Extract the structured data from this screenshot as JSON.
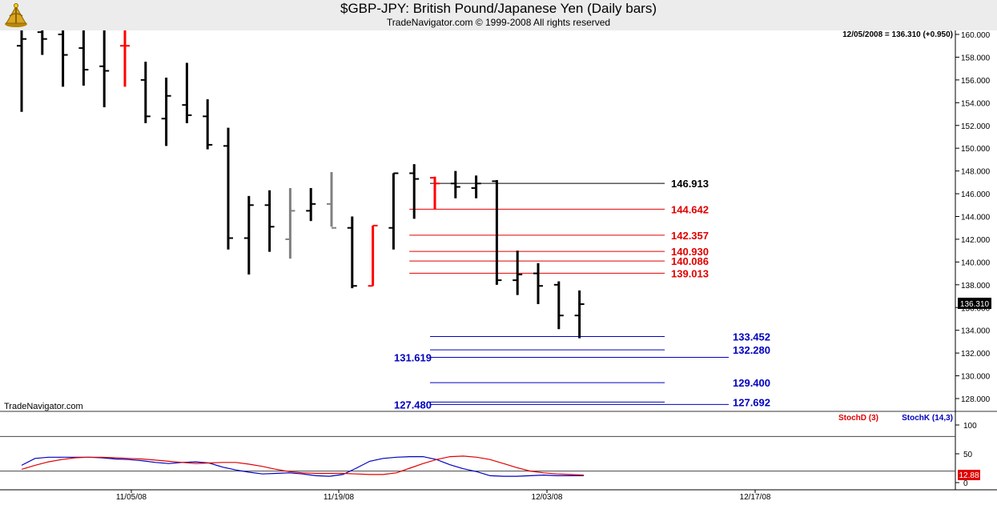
{
  "header": {
    "title": "$GBP-JPY:  British Pound/Japanese Yen  (Daily bars)",
    "copyright": "TradeNavigator.com © 1999-2008 All rights reserved"
  },
  "watermark": "TradeNavigator.com",
  "quote": "12/05/2008 = 136.310 (+0.950)",
  "last_price_tag": "136.310",
  "stoch_tag": "12.88",
  "legend": {
    "stochD": "StochD (3)",
    "stochK": "StochK (14,3)"
  },
  "colors": {
    "up": "#000000",
    "down": "#ff0000",
    "neutral": "#808080",
    "blue": "#0000c0",
    "red": "#e00000"
  },
  "chart_data": {
    "type": "ohlc",
    "y_range": [
      126,
      160.5
    ],
    "y_ticks": [
      "128.000",
      "130.000",
      "132.000",
      "134.000",
      "136.000",
      "138.000",
      "140.000",
      "142.000",
      "144.000",
      "146.000",
      "148.000",
      "150.000",
      "152.000",
      "154.000",
      "156.000",
      "158.000",
      "160.000"
    ],
    "x_labels": [
      "11/05/08",
      "11/19/08",
      "12/03/08",
      "12/17/08"
    ],
    "bars": [
      {
        "o": 159.0,
        "h": 160.5,
        "l": 153.2,
        "c": 159.6,
        "color": "up"
      },
      {
        "o": 160.2,
        "h": 160.5,
        "l": 158.2,
        "c": 159.6,
        "color": "up"
      },
      {
        "o": 160.0,
        "h": 160.5,
        "l": 155.4,
        "c": 158.2,
        "color": "up"
      },
      {
        "o": 158.8,
        "h": 160.5,
        "l": 155.5,
        "c": 156.9,
        "color": "up"
      },
      {
        "o": 157.2,
        "h": 160.5,
        "l": 153.6,
        "c": 156.8,
        "color": "up"
      },
      {
        "o": 159.0,
        "h": 160.5,
        "l": 155.4,
        "c": 159.0,
        "color": "down"
      },
      {
        "o": 156.0,
        "h": 157.6,
        "l": 152.2,
        "c": 152.8,
        "color": "up"
      },
      {
        "o": 152.6,
        "h": 156.2,
        "l": 150.2,
        "c": 154.6,
        "color": "up"
      },
      {
        "o": 153.8,
        "h": 157.5,
        "l": 152.2,
        "c": 152.9,
        "color": "up"
      },
      {
        "o": 152.8,
        "h": 154.3,
        "l": 149.9,
        "c": 150.3,
        "color": "up"
      },
      {
        "o": 150.2,
        "h": 151.8,
        "l": 141.1,
        "c": 142.1,
        "color": "up"
      },
      {
        "o": 142.1,
        "h": 145.8,
        "l": 138.9,
        "c": 145.0,
        "color": "up"
      },
      {
        "o": 145.0,
        "h": 146.3,
        "l": 140.9,
        "c": 143.1,
        "color": "up"
      },
      {
        "o": 142.0,
        "h": 146.5,
        "l": 140.3,
        "c": 144.5,
        "color": "neutral"
      },
      {
        "o": 144.5,
        "h": 146.5,
        "l": 143.6,
        "c": 145.1,
        "color": "up"
      },
      {
        "o": 145.1,
        "h": 147.9,
        "l": 143.1,
        "c": 143.0,
        "color": "neutral"
      },
      {
        "o": 143.0,
        "h": 144.0,
        "l": 137.7,
        "c": 137.9,
        "color": "up"
      },
      {
        "o": 137.9,
        "h": 143.2,
        "l": 137.9,
        "c": 143.2,
        "color": "down"
      },
      {
        "o": 143.0,
        "h": 147.8,
        "l": 141.1,
        "c": 147.8,
        "color": "up"
      },
      {
        "o": 147.8,
        "h": 148.6,
        "l": 143.8,
        "c": 147.3,
        "color": "up"
      },
      {
        "o": 147.4,
        "h": 147.5,
        "l": 144.6,
        "c": 146.9,
        "color": "down"
      },
      {
        "o": 146.9,
        "h": 148.0,
        "l": 145.6,
        "c": 146.6,
        "color": "up"
      },
      {
        "o": 146.5,
        "h": 147.6,
        "l": 145.6,
        "c": 146.9,
        "color": "up"
      },
      {
        "o": 147.1,
        "h": 147.2,
        "l": 138.0,
        "c": 138.4,
        "color": "up"
      },
      {
        "o": 138.4,
        "h": 141.0,
        "l": 137.1,
        "c": 138.9,
        "color": "up"
      },
      {
        "o": 139.0,
        "h": 139.9,
        "l": 136.3,
        "c": 137.9,
        "color": "up"
      },
      {
        "o": 138.0,
        "h": 138.3,
        "l": 134.1,
        "c": 135.3,
        "color": "up"
      },
      {
        "o": 135.3,
        "h": 137.5,
        "l": 133.3,
        "c": 136.3,
        "color": "up"
      }
    ],
    "levels": [
      {
        "value": 146.913,
        "label": "146.913",
        "color": "black",
        "side": "right",
        "x_from_bar": 20
      },
      {
        "value": 144.642,
        "label": "144.642",
        "color": "red",
        "side": "right",
        "x_from_bar": 19
      },
      {
        "value": 142.357,
        "label": "142.357",
        "color": "red",
        "side": "right",
        "x_from_bar": 19
      },
      {
        "value": 140.93,
        "label": "140.930",
        "color": "red",
        "side": "right",
        "x_from_bar": 19
      },
      {
        "value": 140.086,
        "label": "140.086",
        "color": "red",
        "side": "right",
        "x_from_bar": 19
      },
      {
        "value": 139.013,
        "label": "139.013",
        "color": "red",
        "side": "right",
        "x_from_bar": 19
      },
      {
        "value": 133.452,
        "label": "133.452",
        "color": "blue",
        "side": "right",
        "x_from_bar": 20
      },
      {
        "value": 132.28,
        "label": "132.280",
        "color": "blue",
        "side": "right",
        "x_from_bar": 20
      },
      {
        "value": 131.619,
        "label": "131.619",
        "color": "blue",
        "side": "left",
        "x_from_bar": 20
      },
      {
        "value": 129.4,
        "label": "129.400",
        "color": "blue",
        "side": "right",
        "x_from_bar": 20
      },
      {
        "value": 127.692,
        "label": "127.692",
        "color": "blue",
        "side": "right",
        "x_from_bar": 20
      },
      {
        "value": 127.48,
        "label": "127.480",
        "color": "blue",
        "side": "left",
        "x_from_bar": 20
      }
    ],
    "stoch": {
      "y_range": [
        0,
        100
      ],
      "y_ticks": [
        "0",
        "50",
        "100"
      ],
      "ref_lines": [
        20,
        80
      ],
      "stochD": [
        23,
        30,
        36,
        40,
        43,
        44,
        44,
        43,
        42,
        41,
        39,
        37,
        35,
        33,
        34,
        35,
        35,
        32,
        28,
        23,
        19,
        17,
        16,
        16,
        16,
        15,
        14,
        14,
        17,
        25,
        33,
        40,
        45,
        46,
        44,
        40,
        33,
        26,
        20,
        17,
        15,
        14,
        13
      ],
      "stochK": [
        30,
        42,
        44,
        44,
        44,
        44,
        43,
        41,
        40,
        38,
        35,
        33,
        35,
        36,
        34,
        27,
        22,
        18,
        15,
        16,
        17,
        15,
        12,
        11,
        14,
        25,
        37,
        42,
        44,
        45,
        45,
        40,
        31,
        24,
        19,
        12,
        11,
        11,
        12,
        13,
        12,
        12,
        12
      ]
    }
  }
}
